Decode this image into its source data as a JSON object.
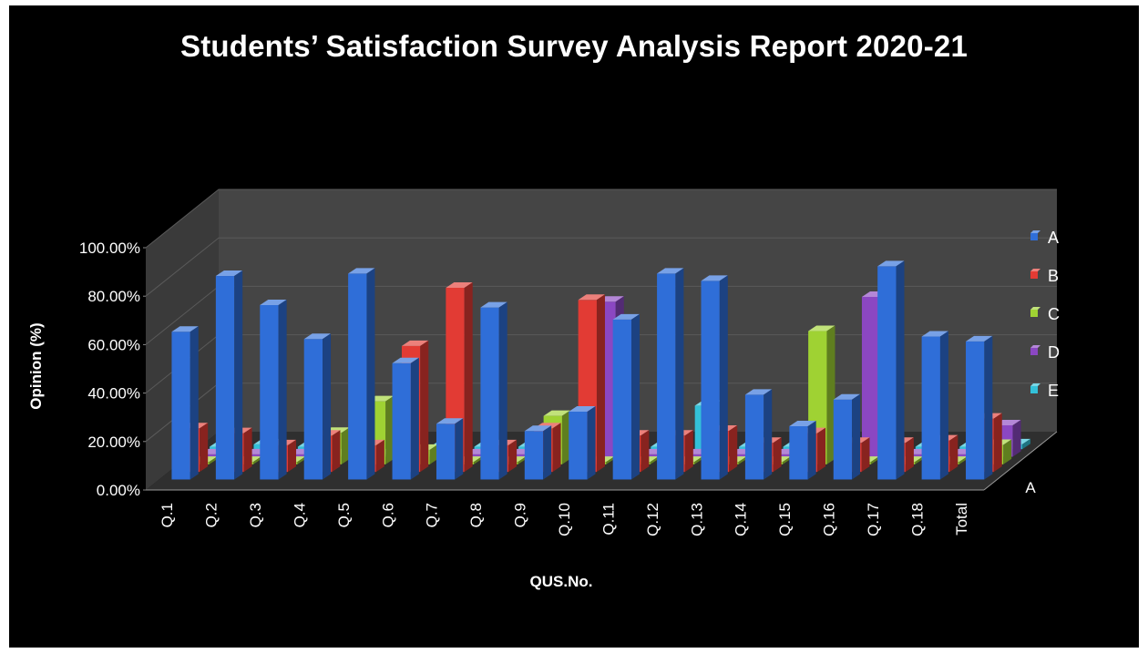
{
  "chart_data": {
    "type": "bar",
    "title": "Students’ Satisfaction  Survey Analysis Report 2020-21",
    "xlabel": "QUS.No.",
    "ylabel": "Opinion (%)",
    "ylim": [
      0,
      100
    ],
    "yticks": [
      "0.00%",
      "20.00%",
      "40.00%",
      "60.00%",
      "80.00%",
      "100.00%"
    ],
    "depth_label": "A",
    "legend_position": "right",
    "categories": [
      "Q.1",
      "Q.2",
      "Q.3",
      "Q.4",
      "Q.5",
      "Q.6",
      "Q.7",
      "Q.8",
      "Q.9",
      "Q.10",
      "Q.11",
      "Q.12",
      "Q.13",
      "Q.14",
      "Q.15",
      "Q.16",
      "Q.17",
      "Q.18",
      "Total"
    ],
    "series": [
      {
        "name": "A",
        "color": "#2f6ed8",
        "values": [
          61,
          84,
          72,
          58,
          85,
          48,
          23,
          71,
          20,
          28,
          66,
          85,
          82,
          35,
          22,
          33,
          88,
          59,
          57
        ]
      },
      {
        "name": "B",
        "color": "#e23b34",
        "values": [
          18,
          16,
          11,
          15,
          11,
          52,
          76,
          11,
          18,
          71,
          15,
          15,
          17,
          12,
          16,
          12,
          12,
          13,
          22
        ]
      },
      {
        "name": "C",
        "color": "#9fd233",
        "values": [
          1,
          1,
          1,
          13,
          26,
          6,
          1,
          1,
          20,
          1,
          1,
          1,
          1,
          1,
          55,
          1,
          1,
          1,
          8
        ]
      },
      {
        "name": "D",
        "color": "#8b47c2",
        "values": [
          1,
          1,
          1,
          1,
          1,
          1,
          1,
          1,
          1,
          64,
          1,
          1,
          1,
          1,
          1,
          66,
          1,
          1,
          13
        ]
      },
      {
        "name": "E",
        "color": "#33c1d9",
        "values": [
          1,
          2,
          1,
          1,
          2,
          1,
          1,
          1,
          1,
          1,
          1,
          18,
          1,
          1,
          1,
          1,
          1,
          1,
          2
        ]
      }
    ]
  }
}
